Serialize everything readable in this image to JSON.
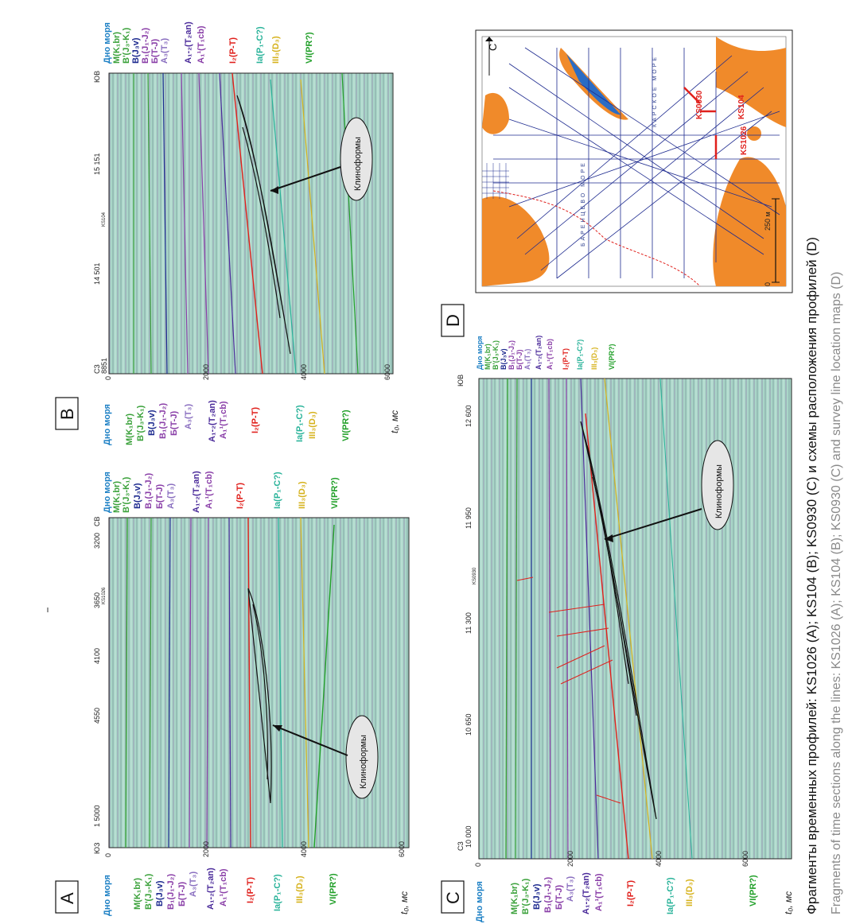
{
  "caption": {
    "ru": "Фрагменты временных профилей: KS1026 (A); KS104 (B); KS0930 (C) и схемы расположения профилей (D)",
    "en": "Fragments of time sections along the lines: KS1026 (A); KS104 (B); KS0930 (C) and survey line location maps (D)"
  },
  "colors": {
    "seafloor": "#1b7fc4",
    "green": "#3aa13a",
    "navy": "#1d2a8f",
    "purple": "#8a3fa8",
    "lilac": "#8a6fc0",
    "indigo": "#4a2a9a",
    "red": "#e0201c",
    "teal": "#2ab39a",
    "gold": "#d6b21c",
    "bright_green": "#22a02a",
    "land": "#f08a2a",
    "water_blue": "#2b6cc4"
  },
  "horizons": [
    {
      "label": "Дно моря",
      "color": "seafloor"
    },
    {
      "label": "M(K₁br)",
      "color": "green"
    },
    {
      "label": "B'(J₃-K₁)",
      "color": "green"
    },
    {
      "label": "B(J₃v)",
      "color": "navy"
    },
    {
      "label": "B₁(J₁-J₂)",
      "color": "purple"
    },
    {
      "label": "Б(T-J)",
      "color": "purple"
    },
    {
      "label": "A₃(T₃)",
      "color": "lilac"
    },
    {
      "label": "A₁-₂(T₂an)",
      "color": "indigo"
    },
    {
      "label": "A₁¹(T₁cb)",
      "color": "purple"
    },
    {
      "label": "I₂(P-T)",
      "color": "red"
    },
    {
      "label": "Ia(P₁-C?)",
      "color": "teal"
    },
    {
      "label": "III₃(D₃)",
      "color": "gold"
    },
    {
      "label": "VI(PR?)",
      "color": "bright_green"
    }
  ],
  "panels": {
    "A": {
      "letter": "A",
      "left_end": "ЮЗ",
      "right_end": "СВ",
      "cdp_ticks": [
        "1 5000",
        "4550",
        "4100",
        "3650",
        "3200"
      ],
      "line_id": "KS1026",
      "time_ticks": [
        "0",
        "2000",
        "4000",
        "6000"
      ],
      "time_axis": "t₀, мс",
      "annotation": "Клиноформы"
    },
    "B": {
      "letter": "B",
      "left_end": "СЗ",
      "right_end": "ЮВ",
      "cdp_ticks": [
        "8851",
        "14 501",
        "15 151"
      ],
      "line_id": "KS104",
      "time_ticks": [
        "0",
        "2000",
        "4000",
        "6000"
      ],
      "time_axis": "t₀, мс",
      "annotation": "Клиноформы"
    },
    "C": {
      "letter": "C",
      "left_end": "СЗ",
      "right_end": "ЮВ",
      "cdp_ticks": [
        "10 000",
        "10 650",
        "11 300",
        "11 950",
        "12 600"
      ],
      "line_id": "KS0930",
      "time_ticks": [
        "0",
        "2000",
        "4000",
        "6000"
      ],
      "time_axis": "t₀, мс",
      "annotation": "Клиноформы"
    },
    "D": {
      "letter": "D",
      "north_label": "C",
      "kara_sea": "КАРСКОЕ МОРЕ",
      "barents_sea": "БАРЕНЦЕВО МОРЕ",
      "scale_label": "250 м",
      "scale_zero": "0",
      "lines": [
        "KS104",
        "KS1026",
        "KS0930"
      ]
    }
  }
}
